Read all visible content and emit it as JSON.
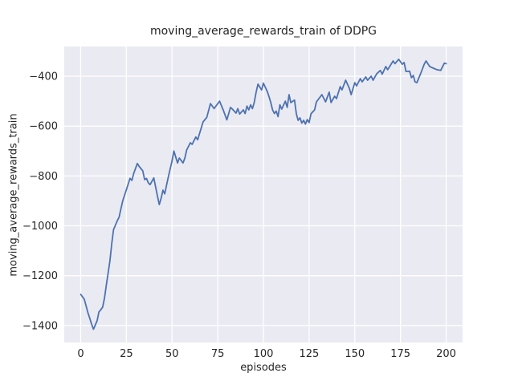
{
  "chart_data": {
    "type": "line",
    "title": "moving_average_rewards_train of DDPG",
    "xlabel": "episodes",
    "ylabel": "moving_average_rewards_train",
    "x": [
      0,
      2,
      4,
      5,
      6,
      7,
      9,
      10,
      11,
      12,
      13,
      14,
      15,
      16,
      17,
      18,
      20,
      21,
      23,
      25,
      27,
      28,
      29,
      31,
      32,
      34,
      35,
      36,
      37,
      38,
      40,
      42,
      43,
      44,
      45,
      46,
      48,
      50,
      51,
      53,
      54,
      56,
      57,
      58,
      60,
      61,
      63,
      64,
      67,
      69,
      71,
      73,
      76,
      78,
      80,
      82,
      83,
      85,
      86,
      87,
      89,
      90,
      91,
      92,
      93,
      94,
      95,
      96,
      97,
      99,
      100,
      102,
      103,
      104,
      105,
      106,
      107,
      108,
      109,
      110,
      112,
      113,
      114,
      115,
      117,
      118,
      119,
      120,
      121,
      122,
      123,
      124,
      125,
      126,
      128,
      129,
      132,
      134,
      136,
      137,
      139,
      140,
      142,
      143,
      145,
      147,
      148,
      150,
      151,
      153,
      154,
      156,
      157,
      159,
      160,
      162,
      164,
      165,
      167,
      168,
      171,
      172,
      174,
      176,
      177,
      178,
      180,
      181,
      182,
      183,
      184,
      186,
      188,
      189,
      191,
      193,
      195,
      197,
      199,
      200
    ],
    "y": [
      -1275,
      -1295,
      -1350,
      -1372,
      -1395,
      -1415,
      -1380,
      -1345,
      -1337,
      -1326,
      -1290,
      -1240,
      -1190,
      -1140,
      -1070,
      -1015,
      -980,
      -965,
      -900,
      -855,
      -810,
      -818,
      -790,
      -750,
      -762,
      -780,
      -815,
      -810,
      -828,
      -835,
      -808,
      -880,
      -915,
      -890,
      -857,
      -872,
      -802,
      -740,
      -700,
      -748,
      -728,
      -748,
      -728,
      -696,
      -667,
      -673,
      -644,
      -655,
      -583,
      -565,
      -510,
      -530,
      -500,
      -535,
      -575,
      -525,
      -532,
      -548,
      -530,
      -552,
      -535,
      -550,
      -520,
      -535,
      -515,
      -530,
      -505,
      -464,
      -432,
      -455,
      -428,
      -460,
      -480,
      -505,
      -535,
      -550,
      -540,
      -562,
      -515,
      -532,
      -500,
      -525,
      -474,
      -506,
      -496,
      -551,
      -577,
      -567,
      -588,
      -577,
      -592,
      -574,
      -586,
      -551,
      -535,
      -503,
      -474,
      -503,
      -464,
      -506,
      -480,
      -490,
      -442,
      -455,
      -416,
      -448,
      -474,
      -426,
      -439,
      -410,
      -423,
      -403,
      -416,
      -400,
      -416,
      -390,
      -377,
      -392,
      -361,
      -374,
      -339,
      -350,
      -332,
      -352,
      -345,
      -381,
      -380,
      -406,
      -397,
      -423,
      -426,
      -390,
      -352,
      -339,
      -361,
      -368,
      -374,
      -377,
      -348,
      -350
    ],
    "xticks": [
      0,
      25,
      50,
      75,
      100,
      125,
      150,
      175,
      200
    ],
    "yticks": [
      -400,
      -600,
      -800,
      -1000,
      -1200,
      -1400
    ],
    "xlim": [
      -9,
      209
    ],
    "ylim": [
      -1468,
      -281
    ],
    "grid": true,
    "legend": "none",
    "colors": {
      "line": "#4c72b0",
      "plot_bg": "#eaeaf2",
      "grid": "#ffffff",
      "text": "#262626",
      "figure_bg": "#ffffff"
    }
  }
}
